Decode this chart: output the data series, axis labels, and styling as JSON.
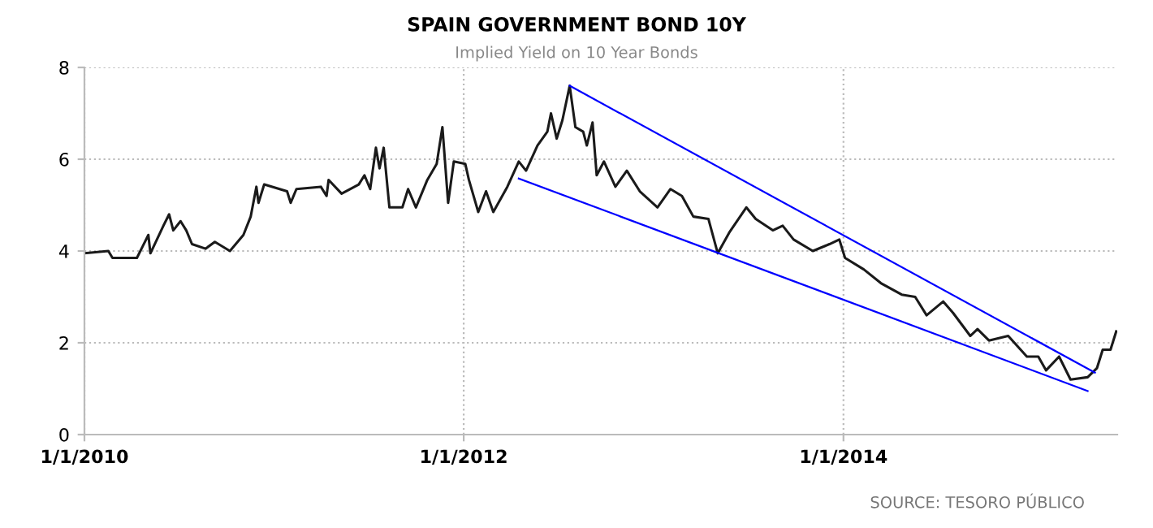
{
  "chart_data": {
    "type": "line",
    "title": "SPAIN GOVERNMENT BOND 10Y",
    "subtitle": "Implied Yield on 10 Year Bonds",
    "annotations": [
      "SOURCE: TESORO PÚBLICO"
    ],
    "xlim": [
      "2010-01-01",
      "2015-06-12"
    ],
    "xticks": [
      {
        "value": "2010-01-01",
        "label": "1/1/2010"
      },
      {
        "value": "2012-01-01",
        "label": "1/1/2012"
      },
      {
        "value": "2014-01-01",
        "label": "1/1/2014"
      }
    ],
    "ylim": [
      0,
      8
    ],
    "yticks": [
      0,
      2,
      4,
      6,
      8
    ],
    "grid": true,
    "marker": "none",
    "line_style": "solid",
    "series": [
      {
        "color": "#1a1a1a",
        "x": [
          "2010-01-01",
          "2010-02-16",
          "2010-02-24",
          "2010-03-29",
          "2010-04-12",
          "2010-04-23",
          "2010-05-04",
          "2010-05-08",
          "2010-06-02",
          "2010-06-13",
          "2010-06-21",
          "2010-07-05",
          "2010-07-16",
          "2010-07-27",
          "2010-08-22",
          "2010-09-09",
          "2010-10-08",
          "2010-11-03",
          "2010-11-17",
          "2010-11-28",
          "2010-12-02",
          "2010-12-13",
          "2011-01-26",
          "2011-02-02",
          "2011-02-13",
          "2011-04-01",
          "2011-04-12",
          "2011-04-16",
          "2011-05-11",
          "2011-06-13",
          "2011-06-24",
          "2011-07-05",
          "2011-07-16",
          "2011-07-23",
          "2011-07-31",
          "2011-08-11",
          "2011-09-05",
          "2011-09-16",
          "2011-10-01",
          "2011-10-23",
          "2011-11-10",
          "2011-11-21",
          "2011-12-02",
          "2011-12-13",
          "2012-01-04",
          "2012-01-11",
          "2012-01-29",
          "2012-02-13",
          "2012-02-27",
          "2012-03-25",
          "2012-04-16",
          "2012-04-30",
          "2012-05-22",
          "2012-06-10",
          "2012-06-17",
          "2012-06-28",
          "2012-07-09",
          "2012-07-23",
          "2012-08-03",
          "2012-08-18",
          "2012-08-25",
          "2012-09-05",
          "2012-09-13",
          "2012-09-27",
          "2012-10-19",
          "2012-11-10",
          "2012-12-05",
          "2013-01-08",
          "2013-02-02",
          "2013-02-24",
          "2013-03-18",
          "2013-04-16",
          "2013-05-04",
          "2013-05-26",
          "2013-06-28",
          "2013-07-16",
          "2013-08-18",
          "2013-09-06",
          "2013-09-27",
          "2013-11-03",
          "2013-12-05",
          "2013-12-24",
          "2014-01-04",
          "2014-02-09",
          "2014-03-14",
          "2014-04-23",
          "2014-05-19",
          "2014-06-10",
          "2014-07-12",
          "2014-07-31",
          "2014-09-02",
          "2014-09-16",
          "2014-10-08",
          "2014-11-14",
          "2014-12-20",
          "2015-01-11",
          "2015-01-26",
          "2015-02-20",
          "2015-03-14",
          "2015-04-16",
          "2015-05-04",
          "2015-05-15",
          "2015-05-30",
          "2015-06-10"
        ],
        "values": [
          3.95,
          4.0,
          3.85,
          3.85,
          3.85,
          4.1,
          4.35,
          3.95,
          4.55,
          4.8,
          4.45,
          4.65,
          4.45,
          4.15,
          4.05,
          4.2,
          4.0,
          4.35,
          4.75,
          5.4,
          5.05,
          5.45,
          5.3,
          5.05,
          5.35,
          5.4,
          5.2,
          5.55,
          5.25,
          5.45,
          5.65,
          5.35,
          6.25,
          5.8,
          6.25,
          4.95,
          4.95,
          5.35,
          4.95,
          5.55,
          5.9,
          6.7,
          5.05,
          5.95,
          5.9,
          5.55,
          4.85,
          5.3,
          4.85,
          5.4,
          5.95,
          5.75,
          6.3,
          6.6,
          7.0,
          6.45,
          6.85,
          7.6,
          6.7,
          6.6,
          6.3,
          6.8,
          5.65,
          5.95,
          5.4,
          5.75,
          5.3,
          4.95,
          5.35,
          5.2,
          4.75,
          4.7,
          3.95,
          4.4,
          4.95,
          4.7,
          4.45,
          4.55,
          4.25,
          4.0,
          4.15,
          4.25,
          3.85,
          3.6,
          3.3,
          3.05,
          3.0,
          2.6,
          2.9,
          2.65,
          2.15,
          2.3,
          2.05,
          2.15,
          1.7,
          1.7,
          1.4,
          1.7,
          1.2,
          1.25,
          1.45,
          1.85,
          1.85,
          2.25
        ]
      },
      {
        "color": "#0000ff",
        "x": [
          "2012-07-23",
          "2015-04-30"
        ],
        "values": [
          7.6,
          1.35
        ]
      },
      {
        "color": "#0000ff",
        "x": [
          "2012-04-16",
          "2015-04-16"
        ],
        "values": [
          5.58,
          0.95
        ]
      }
    ]
  }
}
